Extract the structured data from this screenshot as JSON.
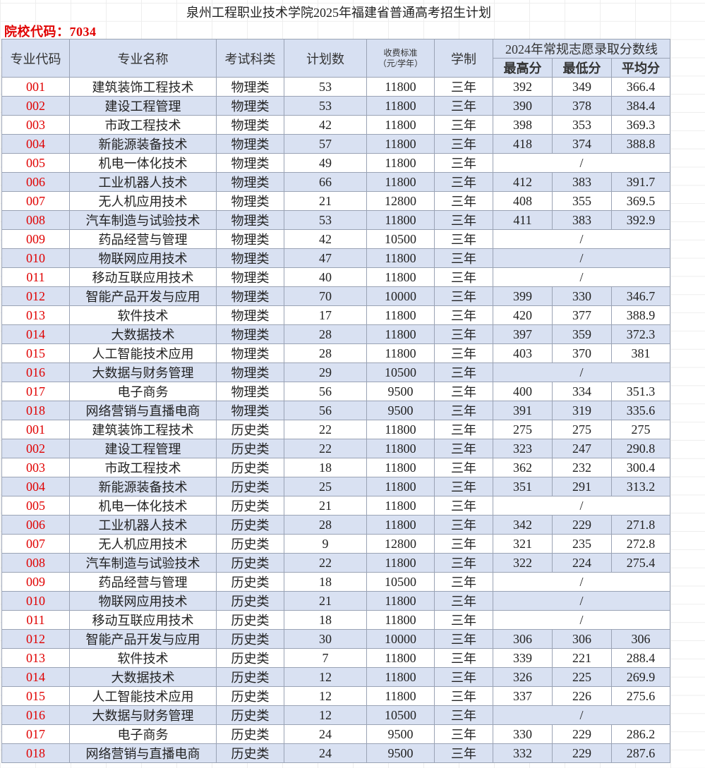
{
  "title": "泉州工程职业技术学院2025年福建省普通高考招生计划",
  "school_code": "院校代码：7034",
  "headers": {
    "code": "专业代码",
    "name": "专业名称",
    "subject": "考试科类",
    "plan": "计划数",
    "fee": "收费标准",
    "fee_unit": "（元/学年）",
    "duration": "学制",
    "scores_group": "2024年常规志愿录取分数线",
    "max": "最高分",
    "min": "最低分",
    "avg": "平均分"
  },
  "rows": [
    [
      "001",
      "建筑装饰工程技术",
      "物理类",
      "53",
      "11800",
      "三年",
      "392",
      "349",
      "366.4"
    ],
    [
      "002",
      "建设工程管理",
      "物理类",
      "53",
      "11800",
      "三年",
      "390",
      "378",
      "384.4"
    ],
    [
      "003",
      "市政工程技术",
      "物理类",
      "42",
      "11800",
      "三年",
      "398",
      "353",
      "369.3"
    ],
    [
      "004",
      "新能源装备技术",
      "物理类",
      "57",
      "11800",
      "三年",
      "418",
      "374",
      "388.8"
    ],
    [
      "005",
      "机电一体化技术",
      "物理类",
      "49",
      "11800",
      "三年",
      "/"
    ],
    [
      "006",
      "工业机器人技术",
      "物理类",
      "66",
      "11800",
      "三年",
      "412",
      "383",
      "391.7"
    ],
    [
      "007",
      "无人机应用技术",
      "物理类",
      "21",
      "12800",
      "三年",
      "408",
      "355",
      "369.5"
    ],
    [
      "008",
      "汽车制造与试验技术",
      "物理类",
      "53",
      "11800",
      "三年",
      "411",
      "383",
      "392.9"
    ],
    [
      "009",
      "药品经营与管理",
      "物理类",
      "42",
      "10500",
      "三年",
      "/"
    ],
    [
      "010",
      "物联网应用技术",
      "物理类",
      "47",
      "11800",
      "三年",
      "/"
    ],
    [
      "011",
      "移动互联应用技术",
      "物理类",
      "40",
      "11800",
      "三年",
      "/"
    ],
    [
      "012",
      "智能产品开发与应用",
      "物理类",
      "70",
      "10000",
      "三年",
      "399",
      "330",
      "346.7"
    ],
    [
      "013",
      "软件技术",
      "物理类",
      "17",
      "11800",
      "三年",
      "420",
      "377",
      "388.9"
    ],
    [
      "014",
      "大数据技术",
      "物理类",
      "28",
      "11800",
      "三年",
      "397",
      "359",
      "372.3"
    ],
    [
      "015",
      "人工智能技术应用",
      "物理类",
      "28",
      "11800",
      "三年",
      "403",
      "370",
      "381"
    ],
    [
      "016",
      "大数据与财务管理",
      "物理类",
      "29",
      "10500",
      "三年",
      "/"
    ],
    [
      "017",
      "电子商务",
      "物理类",
      "56",
      "9500",
      "三年",
      "400",
      "334",
      "351.3"
    ],
    [
      "018",
      "网络营销与直播电商",
      "物理类",
      "56",
      "9500",
      "三年",
      "391",
      "319",
      "335.6"
    ],
    [
      "001",
      "建筑装饰工程技术",
      "历史类",
      "22",
      "11800",
      "三年",
      "275",
      "275",
      "275"
    ],
    [
      "002",
      "建设工程管理",
      "历史类",
      "22",
      "11800",
      "三年",
      "323",
      "247",
      "290.8"
    ],
    [
      "003",
      "市政工程技术",
      "历史类",
      "18",
      "11800",
      "三年",
      "362",
      "232",
      "300.4"
    ],
    [
      "004",
      "新能源装备技术",
      "历史类",
      "25",
      "11800",
      "三年",
      "351",
      "291",
      "313.2"
    ],
    [
      "005",
      "机电一体化技术",
      "历史类",
      "21",
      "11800",
      "三年",
      "/"
    ],
    [
      "006",
      "工业机器人技术",
      "历史类",
      "28",
      "11800",
      "三年",
      "342",
      "229",
      "271.8"
    ],
    [
      "007",
      "无人机应用技术",
      "历史类",
      "9",
      "12800",
      "三年",
      "321",
      "235",
      "272.8"
    ],
    [
      "008",
      "汽车制造与试验技术",
      "历史类",
      "22",
      "11800",
      "三年",
      "322",
      "224",
      "275.4"
    ],
    [
      "009",
      "药品经营与管理",
      "历史类",
      "18",
      "10500",
      "三年",
      "/"
    ],
    [
      "010",
      "物联网应用技术",
      "历史类",
      "21",
      "11800",
      "三年",
      "/"
    ],
    [
      "011",
      "移动互联应用技术",
      "历史类",
      "18",
      "11800",
      "三年",
      "/"
    ],
    [
      "012",
      "智能产品开发与应用",
      "历史类",
      "30",
      "10000",
      "三年",
      "306",
      "306",
      "306"
    ],
    [
      "013",
      "软件技术",
      "历史类",
      "7",
      "11800",
      "三年",
      "339",
      "221",
      "288.4"
    ],
    [
      "014",
      "大数据技术",
      "历史类",
      "12",
      "11800",
      "三年",
      "326",
      "225",
      "269.9"
    ],
    [
      "015",
      "人工智能技术应用",
      "历史类",
      "12",
      "11800",
      "三年",
      "337",
      "226",
      "275.6"
    ],
    [
      "016",
      "大数据与财务管理",
      "历史类",
      "12",
      "10500",
      "三年",
      "/"
    ],
    [
      "017",
      "电子商务",
      "历史类",
      "24",
      "9500",
      "三年",
      "330",
      "229",
      "286.2"
    ],
    [
      "018",
      "网络营销与直播电商",
      "历史类",
      "24",
      "9500",
      "三年",
      "332",
      "229",
      "287.6"
    ]
  ],
  "colors": {
    "code_red": "#e00000",
    "header_bg": "#d7e0f2",
    "alt_row_bg": "#d9e1f2"
  }
}
